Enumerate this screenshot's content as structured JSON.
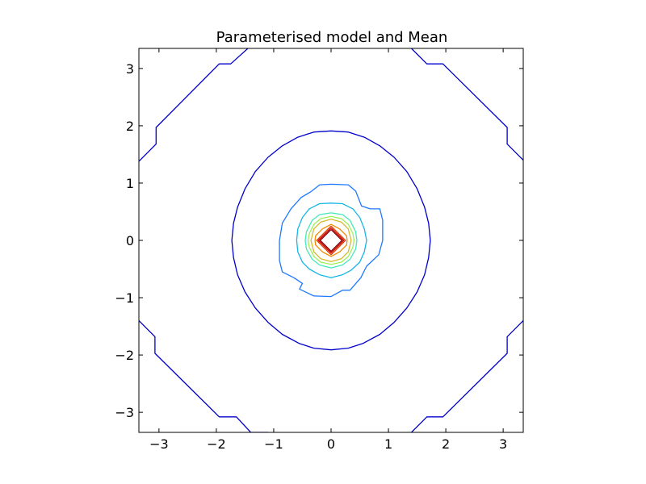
{
  "chart_data": {
    "type": "contour",
    "title": "Parameterised model and Mean",
    "xlabel": "",
    "ylabel": "",
    "xlim": [
      -3.35,
      3.35
    ],
    "ylim": [
      -3.35,
      3.35
    ],
    "grid": false,
    "xticks": [
      {
        "value": -3,
        "label": "−3"
      },
      {
        "value": -2,
        "label": "−2"
      },
      {
        "value": -1,
        "label": "−1"
      },
      {
        "value": 0,
        "label": "0"
      },
      {
        "value": 1,
        "label": "1"
      },
      {
        "value": 2,
        "label": "2"
      },
      {
        "value": 3,
        "label": "3"
      }
    ],
    "yticks": [
      {
        "value": -3,
        "label": "−3"
      },
      {
        "value": -2,
        "label": "−2"
      },
      {
        "value": -1,
        "label": "−1"
      },
      {
        "value": 0,
        "label": "0"
      },
      {
        "value": 1,
        "label": "1"
      },
      {
        "value": 2,
        "label": "2"
      },
      {
        "value": 3,
        "label": "3"
      }
    ],
    "contours": [
      {
        "color": "#0000cc",
        "paths": [
          [
            [
              -1.45,
              3.35
            ],
            [
              -1.75,
              3.08
            ],
            [
              -1.95,
              3.08
            ],
            [
              -3.05,
              1.97
            ],
            [
              -3.05,
              1.68
            ],
            [
              -3.35,
              1.38
            ]
          ],
          [
            [
              1.4,
              3.35
            ],
            [
              1.67,
              3.08
            ],
            [
              1.95,
              3.08
            ],
            [
              3.07,
              1.97
            ],
            [
              3.07,
              1.68
            ],
            [
              3.35,
              1.4
            ]
          ],
          [
            [
              -3.35,
              -1.4
            ],
            [
              -3.07,
              -1.68
            ],
            [
              -3.07,
              -1.97
            ],
            [
              -1.95,
              -3.08
            ],
            [
              -1.65,
              -3.08
            ],
            [
              -1.4,
              -3.35
            ],
            [
              -1.1,
              -3.35
            ]
          ],
          [
            [
              1.4,
              -3.35
            ],
            [
              1.67,
              -3.08
            ],
            [
              1.95,
              -3.08
            ],
            [
              3.07,
              -1.97
            ],
            [
              3.07,
              -1.68
            ],
            [
              3.35,
              -1.4
            ]
          ]
        ]
      },
      {
        "color": "#0000cc",
        "paths": [
          [
            [
              0,
              1.91
            ],
            [
              0.3,
              1.89
            ],
            [
              0.58,
              1.8
            ],
            [
              0.85,
              1.65
            ],
            [
              1.1,
              1.45
            ],
            [
              1.32,
              1.2
            ],
            [
              1.5,
              0.9
            ],
            [
              1.63,
              0.58
            ],
            [
              1.7,
              0.3
            ],
            [
              1.73,
              0
            ],
            [
              1.7,
              -0.3
            ],
            [
              1.63,
              -0.6
            ],
            [
              1.5,
              -0.9
            ],
            [
              1.32,
              -1.18
            ],
            [
              1.1,
              -1.43
            ],
            [
              0.85,
              -1.64
            ],
            [
              0.55,
              -1.8
            ],
            [
              0.3,
              -1.88
            ],
            [
              0,
              -1.91
            ],
            [
              -0.3,
              -1.88
            ],
            [
              -0.55,
              -1.8
            ],
            [
              -0.85,
              -1.64
            ],
            [
              -1.1,
              -1.43
            ],
            [
              -1.32,
              -1.18
            ],
            [
              -1.5,
              -0.9
            ],
            [
              -1.63,
              -0.6
            ],
            [
              -1.7,
              -0.3
            ],
            [
              -1.73,
              0
            ],
            [
              -1.7,
              0.3
            ],
            [
              -1.63,
              0.58
            ],
            [
              -1.5,
              0.9
            ],
            [
              -1.32,
              1.2
            ],
            [
              -1.1,
              1.45
            ],
            [
              -0.85,
              1.65
            ],
            [
              -0.58,
              1.8
            ],
            [
              -0.3,
              1.89
            ],
            [
              0,
              1.91
            ]
          ]
        ]
      },
      {
        "color": "#1e78ff",
        "paths": [
          [
            [
              0,
              0.98
            ],
            [
              0.3,
              0.97
            ],
            [
              0.43,
              0.86
            ],
            [
              0.53,
              0.6
            ],
            [
              0.68,
              0.55
            ],
            [
              0.85,
              0.55
            ],
            [
              0.9,
              0.35
            ],
            [
              0.9,
              0.0
            ],
            [
              0.83,
              -0.25
            ],
            [
              0.62,
              -0.45
            ],
            [
              0.52,
              -0.65
            ],
            [
              0.33,
              -0.87
            ],
            [
              0.2,
              -0.87
            ],
            [
              0,
              -0.98
            ],
            [
              -0.3,
              -0.97
            ],
            [
              -0.55,
              -0.85
            ],
            [
              -0.5,
              -0.75
            ],
            [
              -0.65,
              -0.65
            ],
            [
              -0.85,
              -0.55
            ],
            [
              -0.9,
              -0.35
            ],
            [
              -0.9,
              0.0
            ],
            [
              -0.85,
              0.3
            ],
            [
              -0.7,
              0.55
            ],
            [
              -0.52,
              0.75
            ],
            [
              -0.35,
              0.85
            ],
            [
              -0.2,
              0.97
            ],
            [
              0,
              0.98
            ]
          ]
        ]
      },
      {
        "color": "#17b7e6",
        "paths": [
          [
            [
              0,
              0.65
            ],
            [
              0.2,
              0.64
            ],
            [
              0.38,
              0.55
            ],
            [
              0.5,
              0.4
            ],
            [
              0.58,
              0.2
            ],
            [
              0.62,
              0.0
            ],
            [
              0.58,
              -0.2
            ],
            [
              0.5,
              -0.38
            ],
            [
              0.35,
              -0.52
            ],
            [
              0.2,
              -0.6
            ],
            [
              0,
              -0.65
            ],
            [
              -0.2,
              -0.6
            ],
            [
              -0.38,
              -0.5
            ],
            [
              -0.5,
              -0.38
            ],
            [
              -0.58,
              -0.2
            ],
            [
              -0.6,
              0.0
            ],
            [
              -0.58,
              0.2
            ],
            [
              -0.5,
              0.4
            ],
            [
              -0.38,
              0.55
            ],
            [
              -0.2,
              0.64
            ],
            [
              0,
              0.65
            ]
          ]
        ]
      },
      {
        "color": "#46e8bc",
        "paths": [
          [
            [
              0,
              0.48
            ],
            [
              0.2,
              0.45
            ],
            [
              0.33,
              0.35
            ],
            [
              0.43,
              0.15
            ],
            [
              0.45,
              0.0
            ],
            [
              0.43,
              -0.15
            ],
            [
              0.33,
              -0.33
            ],
            [
              0.2,
              -0.43
            ],
            [
              0,
              -0.48
            ],
            [
              -0.2,
              -0.43
            ],
            [
              -0.33,
              -0.33
            ],
            [
              -0.43,
              -0.15
            ],
            [
              -0.45,
              0.0
            ],
            [
              -0.43,
              0.15
            ],
            [
              -0.33,
              0.35
            ],
            [
              -0.2,
              0.45
            ],
            [
              0,
              0.48
            ]
          ]
        ]
      },
      {
        "color": "#9cf05a",
        "paths": [
          [
            [
              0,
              0.42
            ],
            [
              0.18,
              0.38
            ],
            [
              0.3,
              0.28
            ],
            [
              0.38,
              0.12
            ],
            [
              0.4,
              0.0
            ],
            [
              0.38,
              -0.12
            ],
            [
              0.3,
              -0.28
            ],
            [
              0.18,
              -0.38
            ],
            [
              0,
              -0.42
            ],
            [
              -0.18,
              -0.38
            ],
            [
              -0.3,
              -0.28
            ],
            [
              -0.38,
              -0.12
            ],
            [
              -0.4,
              0.0
            ],
            [
              -0.38,
              0.12
            ],
            [
              -0.3,
              0.28
            ],
            [
              -0.18,
              0.38
            ],
            [
              0,
              0.42
            ]
          ]
        ]
      },
      {
        "color": "#d8b82c",
        "paths": [
          [
            [
              0,
              0.37
            ],
            [
              0.18,
              0.32
            ],
            [
              0.3,
              0.2
            ],
            [
              0.35,
              0.0
            ],
            [
              0.3,
              -0.2
            ],
            [
              0.18,
              -0.32
            ],
            [
              0,
              -0.37
            ],
            [
              -0.18,
              -0.32
            ],
            [
              -0.3,
              -0.2
            ],
            [
              -0.35,
              0.0
            ],
            [
              -0.3,
              0.2
            ],
            [
              -0.18,
              0.32
            ],
            [
              0,
              0.37
            ]
          ]
        ]
      },
      {
        "color": "#f08a00",
        "paths": [
          [
            [
              0,
              0.28
            ],
            [
              0.15,
              0.2
            ],
            [
              0.27,
              0.08
            ],
            [
              0.28,
              0.0
            ],
            [
              0.27,
              -0.08
            ],
            [
              0.15,
              -0.2
            ],
            [
              0,
              -0.28
            ],
            [
              -0.15,
              -0.2
            ],
            [
              -0.27,
              -0.08
            ],
            [
              -0.28,
              0.0
            ],
            [
              -0.27,
              0.08
            ],
            [
              -0.15,
              0.2
            ],
            [
              0,
              0.28
            ]
          ]
        ]
      },
      {
        "color": "#e03a00",
        "paths": [
          [
            [
              0,
              0.25
            ],
            [
              0.25,
              0.0
            ],
            [
              0,
              -0.25
            ],
            [
              -0.25,
              0.0
            ],
            [
              0,
              0.25
            ]
          ]
        ]
      },
      {
        "color": "#c80000",
        "paths": [
          [
            [
              0,
              0.22
            ],
            [
              0.22,
              0.0
            ],
            [
              0,
              -0.22
            ],
            [
              -0.22,
              0.0
            ],
            [
              0,
              0.22
            ]
          ]
        ]
      },
      {
        "color": "#8a0000",
        "paths": [
          [
            [
              0,
              0.19
            ],
            [
              0.19,
              0.0
            ],
            [
              0,
              -0.19
            ],
            [
              -0.19,
              0.0
            ],
            [
              0,
              0.19
            ]
          ]
        ]
      }
    ]
  }
}
